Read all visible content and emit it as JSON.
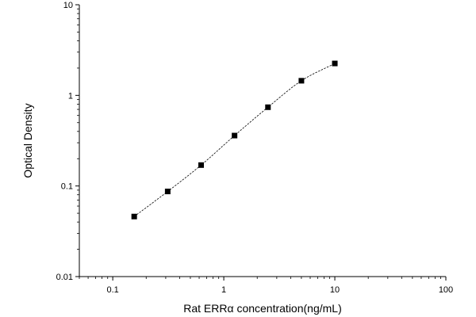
{
  "chart_data": {
    "type": "scatter",
    "title": "",
    "xlabel": "Rat ERRα  concentration(ng/mL)",
    "ylabel": "Optical Density",
    "x_scale": "log",
    "y_scale": "log",
    "xlim": [
      0.05,
      100
    ],
    "ylim": [
      0.01,
      10
    ],
    "x_ticks": [
      {
        "value": 0.1,
        "label": "0.1"
      },
      {
        "value": 1,
        "label": "1"
      },
      {
        "value": 10,
        "label": "10"
      },
      {
        "value": 100,
        "label": "100"
      }
    ],
    "y_ticks": [
      {
        "value": 0.01,
        "label": "0.01"
      },
      {
        "value": 0.1,
        "label": "0.1"
      },
      {
        "value": 1,
        "label": "1"
      },
      {
        "value": 10,
        "label": "10"
      }
    ],
    "grid": false,
    "legend": "none",
    "series": [
      {
        "x": [
          0.156,
          0.3125,
          0.625,
          1.25,
          2.5,
          5,
          10
        ],
        "y": [
          0.046,
          0.087,
          0.17,
          0.36,
          0.74,
          1.45,
          2.25
        ],
        "marker": "square",
        "color": "#000000",
        "fit_line": "dashed"
      }
    ]
  }
}
